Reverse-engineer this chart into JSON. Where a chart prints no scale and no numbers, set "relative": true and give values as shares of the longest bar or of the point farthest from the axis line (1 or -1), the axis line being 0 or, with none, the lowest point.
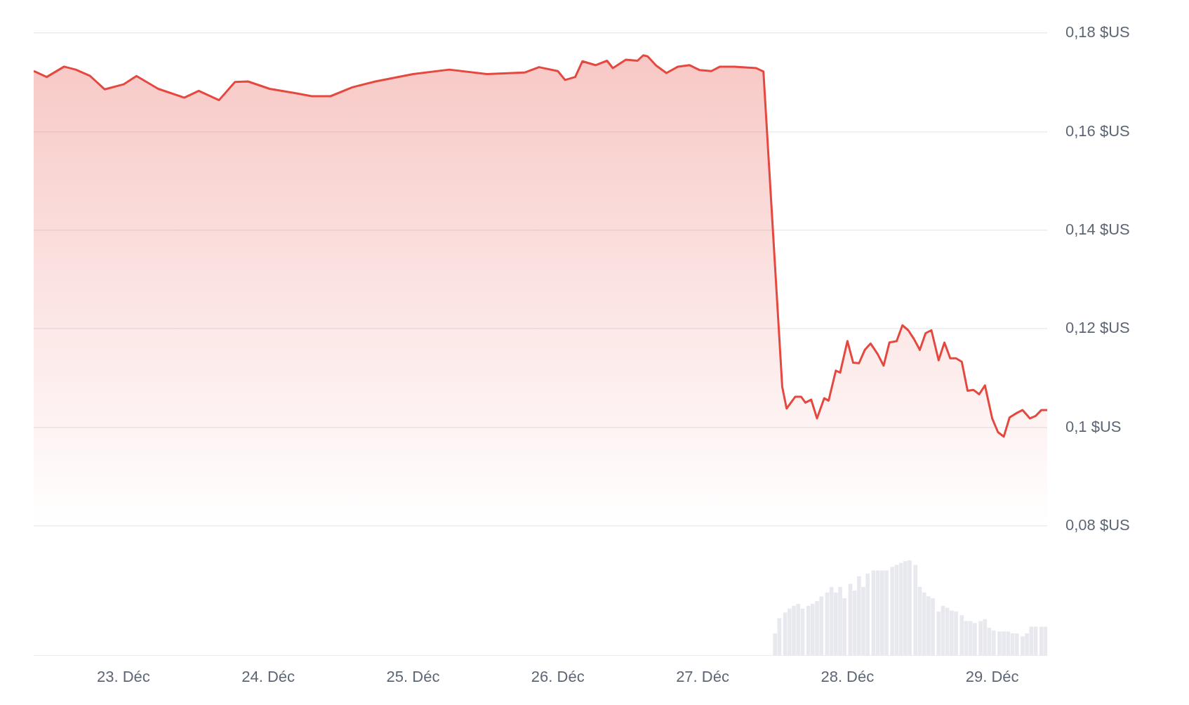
{
  "chart_data": [
    {
      "type": "area",
      "x": [
        22.38,
        22.47,
        22.59,
        22.67,
        22.77,
        22.87,
        23.0,
        23.09,
        23.24,
        23.42,
        23.52,
        23.66,
        23.77,
        23.86,
        24.01,
        24.19,
        24.3,
        24.43,
        24.58,
        24.74,
        25.0,
        25.25,
        25.51,
        25.77,
        25.87,
        26.0,
        26.05,
        26.12,
        26.17,
        26.26,
        26.34,
        26.38,
        26.47,
        26.55,
        26.59,
        26.62,
        26.68,
        26.75,
        26.83,
        26.91,
        26.98,
        27.06,
        27.12,
        27.22,
        27.37,
        27.42,
        27.55,
        27.58,
        27.64,
        27.68,
        27.71,
        27.75,
        27.79,
        27.84,
        27.87,
        27.92,
        27.95,
        28.0,
        28.04,
        28.08,
        28.12,
        28.16,
        28.21,
        28.25,
        28.29,
        28.34,
        28.38,
        28.42,
        28.46,
        28.5,
        28.54,
        28.58,
        28.63,
        28.67,
        28.71,
        28.75,
        28.79,
        28.83,
        28.87,
        28.91,
        28.95,
        29.0,
        29.04,
        29.08,
        29.12,
        29.17,
        29.21,
        29.26,
        29.3,
        29.34,
        29.38
      ],
      "series": [
        {
          "color": "#e5483f",
          "values": [
            0.1723,
            0.1711,
            0.1732,
            0.1726,
            0.1713,
            0.1686,
            0.1696,
            0.1713,
            0.1687,
            0.1669,
            0.1683,
            0.1664,
            0.1701,
            0.1702,
            0.1687,
            0.1678,
            0.1672,
            0.1672,
            0.169,
            0.1702,
            0.1717,
            0.1726,
            0.1717,
            0.172,
            0.1731,
            0.1723,
            0.1705,
            0.1711,
            0.1743,
            0.1735,
            0.1744,
            0.1729,
            0.1746,
            0.1744,
            0.1755,
            0.1753,
            0.1734,
            0.1719,
            0.1732,
            0.1735,
            0.1725,
            0.1723,
            0.1732,
            0.1732,
            0.1729,
            0.1722,
            0.1082,
            0.1038,
            0.1062,
            0.1062,
            0.105,
            0.1056,
            0.1018,
            0.1059,
            0.1054,
            0.1115,
            0.1111,
            0.1175,
            0.1131,
            0.113,
            0.1157,
            0.117,
            0.1148,
            0.1125,
            0.1172,
            0.1175,
            0.1207,
            0.1197,
            0.1179,
            0.1157,
            0.1191,
            0.1197,
            0.1136,
            0.1172,
            0.114,
            0.114,
            0.1133,
            0.1074,
            0.1076,
            0.1067,
            0.1085,
            0.1018,
            0.099,
            0.0981,
            0.102,
            0.1029,
            0.1035,
            0.1018,
            0.1023,
            0.1035,
            0.1035
          ]
        }
      ],
      "xlim": [
        22.38,
        29.38
      ],
      "ylim": [
        0.08,
        0.18
      ],
      "yticks": [
        {
          "value": 0.08,
          "label": "0,08 $US"
        },
        {
          "value": 0.1,
          "label": "0,1 $US"
        },
        {
          "value": 0.12,
          "label": "0,12 $US"
        },
        {
          "value": 0.14,
          "label": "0,14 $US"
        },
        {
          "value": 0.16,
          "label": "0,16 $US"
        },
        {
          "value": 0.18,
          "label": "0,18 $US"
        }
      ],
      "grid": "y",
      "tick_labels": "y"
    },
    {
      "type": "bar",
      "relative": true,
      "x": [
        27.5,
        27.53,
        27.57,
        27.6,
        27.63,
        27.66,
        27.69,
        27.73,
        27.76,
        27.79,
        27.82,
        27.86,
        27.89,
        27.92,
        27.95,
        27.98,
        28.02,
        28.05,
        28.08,
        28.11,
        28.14,
        28.18,
        28.21,
        28.24,
        28.27,
        28.31,
        28.34,
        28.37,
        28.4,
        28.43,
        28.47,
        28.5,
        28.53,
        28.56,
        28.59,
        28.63,
        28.66,
        28.69,
        28.72,
        28.75,
        28.79,
        28.82,
        28.85,
        28.88,
        28.92,
        28.95,
        28.98,
        29.01,
        29.05,
        29.08,
        29.11,
        29.14,
        29.17,
        29.21,
        29.24,
        29.27,
        29.3,
        29.34,
        29.37
      ],
      "series": [
        {
          "color": "#e8e8ef",
          "values": [
            0.23,
            0.39,
            0.45,
            0.49,
            0.52,
            0.54,
            0.49,
            0.52,
            0.54,
            0.57,
            0.62,
            0.66,
            0.72,
            0.66,
            0.72,
            0.6,
            0.75,
            0.68,
            0.83,
            0.72,
            0.86,
            0.89,
            0.89,
            0.89,
            0.89,
            0.93,
            0.95,
            0.97,
            0.99,
            1,
            0.95,
            0.72,
            0.66,
            0.62,
            0.6,
            0.46,
            0.52,
            0.5,
            0.47,
            0.46,
            0.42,
            0.36,
            0.36,
            0.34,
            0.36,
            0.38,
            0.29,
            0.26,
            0.25,
            0.25,
            0.25,
            0.23,
            0.23,
            0.2,
            0.23,
            0.3,
            0.3,
            0.3,
            0.3
          ]
        }
      ],
      "xlim": [
        22.38,
        29.38
      ],
      "xticks": [
        {
          "value": 23,
          "label": "23. Déc"
        },
        {
          "value": 24,
          "label": "24. Déc"
        },
        {
          "value": 25,
          "label": "25. Déc"
        },
        {
          "value": 26,
          "label": "26. Déc"
        },
        {
          "value": 27,
          "label": "27. Déc"
        },
        {
          "value": 28,
          "label": "28. Déc"
        },
        {
          "value": 29,
          "label": "29. Déc"
        }
      ],
      "tick_labels": "x"
    }
  ]
}
